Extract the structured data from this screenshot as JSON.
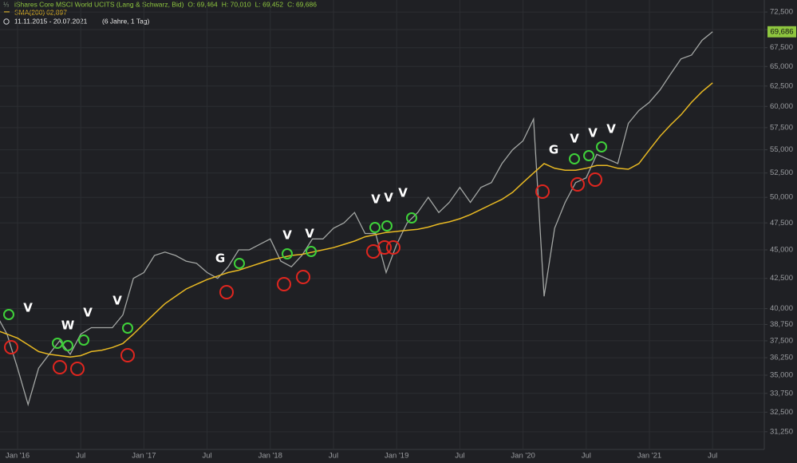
{
  "header": {
    "title": "iShares Core MSCI World UCITS (Lang & Schwarz, Bid)",
    "ohlc": [
      "O: 69,464",
      "H: 70,010",
      "L: 69,452",
      "C: 69,686"
    ],
    "period": "11.11.2015 - 20.07.2021",
    "span": "(6 Jahre, 1 Tag)"
  },
  "chart_data": {
    "type": "line",
    "log_scale": true,
    "grid": true,
    "categories": [
      null,
      null,
      "Jan '16",
      null,
      null,
      null,
      null,
      null,
      "Jul",
      null,
      null,
      null,
      null,
      null,
      "Jan '17",
      null,
      null,
      null,
      null,
      null,
      "Jul",
      null,
      null,
      null,
      null,
      null,
      "Jan '18",
      null,
      null,
      null,
      null,
      null,
      "Jul",
      null,
      null,
      null,
      null,
      null,
      "Jan '19",
      null,
      null,
      null,
      null,
      null,
      "Jul",
      null,
      null,
      null,
      null,
      null,
      "Jan '20",
      null,
      null,
      null,
      null,
      null,
      "Jul",
      null,
      null,
      null,
      null,
      null,
      "Jan '21",
      null,
      null,
      null,
      null,
      null,
      "Jul"
    ],
    "series": [
      {
        "color": "#a3a6a4",
        "last_label": "69,686",
        "values": [
          39500,
          38000,
          35500,
          33000,
          35500,
          36500,
          37500,
          36500,
          38000,
          38500,
          38500,
          38500,
          39500,
          42500,
          43000,
          44500,
          44800,
          44500,
          44000,
          43800,
          43000,
          42500,
          43500,
          45000,
          45000,
          45500,
          46000,
          44000,
          43500,
          44500,
          46000,
          46000,
          47000,
          47500,
          48500,
          46500,
          46500,
          43000,
          45500,
          47500,
          48500,
          50000,
          48500,
          49500,
          51000,
          49500,
          51000,
          51500,
          53500,
          55000,
          56000,
          58500,
          41000,
          47000,
          49500,
          51500,
          52000,
          54500,
          54000,
          53500,
          58000,
          59500,
          60500,
          62000,
          64000,
          66000,
          66500,
          68500,
          69686
        ]
      },
      {
        "name": "SMA(200)",
        "color": "#e8b923",
        "last_label": "62,897",
        "values": [
          38300,
          38000,
          37700,
          37200,
          36700,
          36500,
          36400,
          36300,
          36400,
          36700,
          36800,
          37000,
          37300,
          38000,
          38800,
          39600,
          40400,
          41000,
          41600,
          42000,
          42400,
          42700,
          43000,
          43200,
          43500,
          43800,
          44100,
          44300,
          44500,
          44600,
          44800,
          45000,
          45200,
          45500,
          45800,
          46200,
          46400,
          46600,
          46700,
          46800,
          46900,
          47100,
          47400,
          47600,
          47900,
          48300,
          48800,
          49300,
          49800,
          50500,
          51500,
          52500,
          53500,
          53000,
          52800,
          52800,
          53000,
          53300,
          53300,
          53000,
          52900,
          53500,
          55000,
          56500,
          57800,
          59000,
          60500,
          61800,
          62897
        ]
      }
    ],
    "ylim": [
      30160,
      74270
    ],
    "yticks": [
      {
        "value": 72500,
        "label": "72,500"
      },
      {
        "value": 70000,
        "label": "70,000"
      },
      {
        "value": 67500,
        "label": "67,500"
      },
      {
        "value": 65000,
        "label": "65,000"
      },
      {
        "value": 62500,
        "label": "62,500"
      },
      {
        "value": 60000,
        "label": "60,000"
      },
      {
        "value": 57500,
        "label": "57,500"
      },
      {
        "value": 55000,
        "label": "55,000"
      },
      {
        "value": 52500,
        "label": "52,500"
      },
      {
        "value": 50000,
        "label": "50,000"
      },
      {
        "value": 47500,
        "label": "47,500"
      },
      {
        "value": 45000,
        "label": "45,000"
      },
      {
        "value": 42500,
        "label": "42,500"
      },
      {
        "value": 40000,
        "label": "40,000"
      },
      {
        "value": 38750,
        "label": "38,750"
      },
      {
        "value": 37500,
        "label": "37,500"
      },
      {
        "value": 36250,
        "label": "36,250"
      },
      {
        "value": 35000,
        "label": "35,000"
      },
      {
        "value": 33750,
        "label": "33,750"
      },
      {
        "value": 32500,
        "label": "32,500"
      },
      {
        "value": 31250,
        "label": "31,250"
      }
    ],
    "annotations": [
      "V",
      "W",
      "V",
      "V",
      "G",
      "V",
      "V",
      "V",
      "V",
      "V",
      "G",
      "V",
      "V",
      "V"
    ]
  }
}
